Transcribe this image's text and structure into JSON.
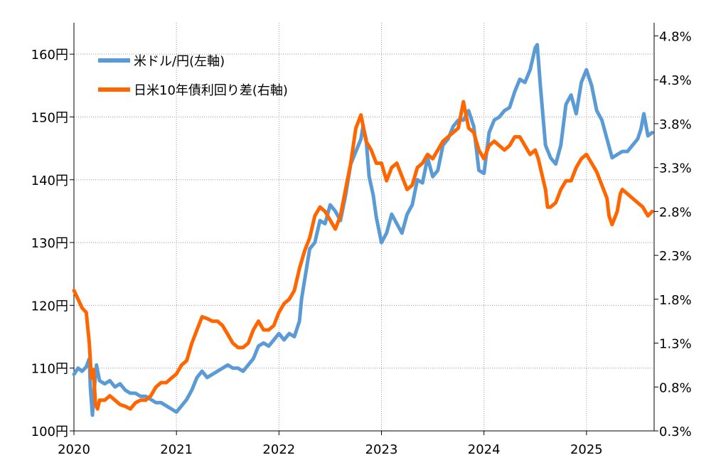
{
  "chart_data": {
    "type": "line",
    "x_ticks": [
      "2020",
      "2021",
      "2022",
      "2023",
      "2024",
      "2025"
    ],
    "x_range": [
      2020.0,
      2025.66
    ],
    "y_left": {
      "ticks": [
        "100円",
        "110円",
        "120円",
        "130円",
        "140円",
        "150円",
        "160円"
      ],
      "range": [
        100,
        165
      ]
    },
    "y_right": {
      "ticks": [
        "0.3%",
        "0.8%",
        "1.3%",
        "1.8%",
        "2.3%",
        "2.8%",
        "3.3%",
        "3.8%",
        "4.3%",
        "4.8%"
      ],
      "range": [
        0.3,
        4.95
      ]
    },
    "grid": "dotted",
    "legend_position": "top-left",
    "series": [
      {
        "name": "米ドル/円(左軸)",
        "axis": "left",
        "color": "#5b9bd5",
        "points": [
          [
            2020.0,
            109.0
          ],
          [
            2020.04,
            110.0
          ],
          [
            2020.08,
            109.5
          ],
          [
            2020.12,
            110.2
          ],
          [
            2020.15,
            111.5
          ],
          [
            2020.16,
            107.0
          ],
          [
            2020.18,
            102.5
          ],
          [
            2020.2,
            107.0
          ],
          [
            2020.22,
            110.5
          ],
          [
            2020.25,
            108.0
          ],
          [
            2020.3,
            107.5
          ],
          [
            2020.35,
            108.0
          ],
          [
            2020.4,
            107.0
          ],
          [
            2020.45,
            107.5
          ],
          [
            2020.5,
            106.5
          ],
          [
            2020.55,
            106.0
          ],
          [
            2020.6,
            106.0
          ],
          [
            2020.65,
            105.5
          ],
          [
            2020.7,
            105.5
          ],
          [
            2020.75,
            105.0
          ],
          [
            2020.8,
            104.5
          ],
          [
            2020.85,
            104.5
          ],
          [
            2020.9,
            104.0
          ],
          [
            2020.95,
            103.5
          ],
          [
            2021.0,
            103.0
          ],
          [
            2021.05,
            104.0
          ],
          [
            2021.1,
            105.0
          ],
          [
            2021.15,
            106.5
          ],
          [
            2021.2,
            108.5
          ],
          [
            2021.25,
            109.5
          ],
          [
            2021.3,
            108.5
          ],
          [
            2021.35,
            109.0
          ],
          [
            2021.4,
            109.5
          ],
          [
            2021.45,
            110.0
          ],
          [
            2021.5,
            110.5
          ],
          [
            2021.55,
            110.0
          ],
          [
            2021.6,
            110.0
          ],
          [
            2021.65,
            109.5
          ],
          [
            2021.7,
            110.5
          ],
          [
            2021.75,
            111.5
          ],
          [
            2021.8,
            113.5
          ],
          [
            2021.85,
            114.0
          ],
          [
            2021.9,
            113.5
          ],
          [
            2021.95,
            114.5
          ],
          [
            2022.0,
            115.5
          ],
          [
            2022.05,
            114.5
          ],
          [
            2022.1,
            115.5
          ],
          [
            2022.15,
            115.0
          ],
          [
            2022.2,
            117.5
          ],
          [
            2022.22,
            121.0
          ],
          [
            2022.25,
            124.0
          ],
          [
            2022.3,
            129.0
          ],
          [
            2022.35,
            130.0
          ],
          [
            2022.4,
            133.5
          ],
          [
            2022.45,
            133.0
          ],
          [
            2022.5,
            136.0
          ],
          [
            2022.55,
            135.0
          ],
          [
            2022.6,
            133.5
          ],
          [
            2022.65,
            137.5
          ],
          [
            2022.7,
            142.5
          ],
          [
            2022.75,
            144.5
          ],
          [
            2022.8,
            146.5
          ],
          [
            2022.82,
            148.5
          ],
          [
            2022.85,
            146.5
          ],
          [
            2022.88,
            140.5
          ],
          [
            2022.92,
            137.5
          ],
          [
            2022.95,
            134.0
          ],
          [
            2023.0,
            130.0
          ],
          [
            2023.05,
            131.5
          ],
          [
            2023.1,
            134.5
          ],
          [
            2023.15,
            133.0
          ],
          [
            2023.2,
            131.5
          ],
          [
            2023.25,
            134.5
          ],
          [
            2023.3,
            136.0
          ],
          [
            2023.35,
            140.0
          ],
          [
            2023.4,
            139.5
          ],
          [
            2023.45,
            143.5
          ],
          [
            2023.5,
            140.5
          ],
          [
            2023.55,
            141.5
          ],
          [
            2023.6,
            145.5
          ],
          [
            2023.65,
            146.5
          ],
          [
            2023.7,
            148.5
          ],
          [
            2023.75,
            149.5
          ],
          [
            2023.8,
            149.5
          ],
          [
            2023.85,
            151.0
          ],
          [
            2023.9,
            148.5
          ],
          [
            2023.95,
            141.5
          ],
          [
            2024.0,
            141.0
          ],
          [
            2024.05,
            147.5
          ],
          [
            2024.1,
            149.5
          ],
          [
            2024.15,
            150.0
          ],
          [
            2024.2,
            151.0
          ],
          [
            2024.25,
            151.5
          ],
          [
            2024.3,
            154.0
          ],
          [
            2024.35,
            156.0
          ],
          [
            2024.4,
            155.5
          ],
          [
            2024.45,
            157.5
          ],
          [
            2024.5,
            161.0
          ],
          [
            2024.52,
            161.5
          ],
          [
            2024.55,
            155.0
          ],
          [
            2024.6,
            145.5
          ],
          [
            2024.65,
            143.5
          ],
          [
            2024.7,
            142.5
          ],
          [
            2024.75,
            145.5
          ],
          [
            2024.8,
            152.0
          ],
          [
            2024.85,
            153.5
          ],
          [
            2024.9,
            150.5
          ],
          [
            2024.95,
            155.5
          ],
          [
            2025.0,
            157.5
          ],
          [
            2025.05,
            155.0
          ],
          [
            2025.1,
            151.0
          ],
          [
            2025.15,
            149.5
          ],
          [
            2025.2,
            146.5
          ],
          [
            2025.25,
            143.5
          ],
          [
            2025.3,
            144.0
          ],
          [
            2025.35,
            144.5
          ],
          [
            2025.4,
            144.5
          ],
          [
            2025.45,
            145.5
          ],
          [
            2025.5,
            146.5
          ],
          [
            2025.53,
            148.0
          ],
          [
            2025.56,
            150.5
          ],
          [
            2025.6,
            147.0
          ],
          [
            2025.64,
            147.5
          ]
        ]
      },
      {
        "name": "日米10年債利回り差(右軸)",
        "axis": "right",
        "color": "#ff6600",
        "points": [
          [
            2020.0,
            1.9
          ],
          [
            2020.04,
            1.8
          ],
          [
            2020.08,
            1.7
          ],
          [
            2020.12,
            1.65
          ],
          [
            2020.15,
            1.3
          ],
          [
            2020.17,
            0.9
          ],
          [
            2020.19,
            1.0
          ],
          [
            2020.21,
            0.6
          ],
          [
            2020.23,
            0.55
          ],
          [
            2020.25,
            0.65
          ],
          [
            2020.3,
            0.65
          ],
          [
            2020.35,
            0.7
          ],
          [
            2020.4,
            0.65
          ],
          [
            2020.45,
            0.6
          ],
          [
            2020.5,
            0.58
          ],
          [
            2020.55,
            0.55
          ],
          [
            2020.6,
            0.62
          ],
          [
            2020.65,
            0.65
          ],
          [
            2020.7,
            0.65
          ],
          [
            2020.75,
            0.7
          ],
          [
            2020.8,
            0.8
          ],
          [
            2020.85,
            0.85
          ],
          [
            2020.9,
            0.85
          ],
          [
            2020.95,
            0.9
          ],
          [
            2021.0,
            0.95
          ],
          [
            2021.05,
            1.05
          ],
          [
            2021.1,
            1.1
          ],
          [
            2021.15,
            1.3
          ],
          [
            2021.2,
            1.45
          ],
          [
            2021.25,
            1.6
          ],
          [
            2021.3,
            1.58
          ],
          [
            2021.35,
            1.55
          ],
          [
            2021.4,
            1.55
          ],
          [
            2021.45,
            1.5
          ],
          [
            2021.5,
            1.4
          ],
          [
            2021.55,
            1.3
          ],
          [
            2021.6,
            1.25
          ],
          [
            2021.65,
            1.25
          ],
          [
            2021.7,
            1.3
          ],
          [
            2021.75,
            1.45
          ],
          [
            2021.8,
            1.55
          ],
          [
            2021.85,
            1.45
          ],
          [
            2021.9,
            1.45
          ],
          [
            2021.95,
            1.5
          ],
          [
            2022.0,
            1.65
          ],
          [
            2022.05,
            1.75
          ],
          [
            2022.1,
            1.8
          ],
          [
            2022.15,
            1.9
          ],
          [
            2022.2,
            2.15
          ],
          [
            2022.25,
            2.35
          ],
          [
            2022.3,
            2.5
          ],
          [
            2022.35,
            2.75
          ],
          [
            2022.4,
            2.85
          ],
          [
            2022.45,
            2.8
          ],
          [
            2022.5,
            2.7
          ],
          [
            2022.55,
            2.6
          ],
          [
            2022.6,
            2.75
          ],
          [
            2022.65,
            3.05
          ],
          [
            2022.7,
            3.35
          ],
          [
            2022.75,
            3.75
          ],
          [
            2022.8,
            3.9
          ],
          [
            2022.85,
            3.6
          ],
          [
            2022.9,
            3.5
          ],
          [
            2022.95,
            3.35
          ],
          [
            2023.0,
            3.35
          ],
          [
            2023.05,
            3.15
          ],
          [
            2023.1,
            3.3
          ],
          [
            2023.15,
            3.35
          ],
          [
            2023.2,
            3.2
          ],
          [
            2023.25,
            3.05
          ],
          [
            2023.3,
            3.1
          ],
          [
            2023.35,
            3.3
          ],
          [
            2023.4,
            3.35
          ],
          [
            2023.45,
            3.45
          ],
          [
            2023.5,
            3.4
          ],
          [
            2023.55,
            3.5
          ],
          [
            2023.6,
            3.6
          ],
          [
            2023.65,
            3.65
          ],
          [
            2023.7,
            3.7
          ],
          [
            2023.75,
            3.75
          ],
          [
            2023.8,
            4.05
          ],
          [
            2023.85,
            3.75
          ],
          [
            2023.9,
            3.7
          ],
          [
            2023.95,
            3.5
          ],
          [
            2024.0,
            3.4
          ],
          [
            2024.05,
            3.55
          ],
          [
            2024.1,
            3.6
          ],
          [
            2024.15,
            3.55
          ],
          [
            2024.2,
            3.5
          ],
          [
            2024.25,
            3.55
          ],
          [
            2024.3,
            3.65
          ],
          [
            2024.35,
            3.65
          ],
          [
            2024.4,
            3.55
          ],
          [
            2024.45,
            3.45
          ],
          [
            2024.5,
            3.5
          ],
          [
            2024.53,
            3.4
          ],
          [
            2024.56,
            3.25
          ],
          [
            2024.58,
            3.15
          ],
          [
            2024.6,
            3.05
          ],
          [
            2024.62,
            2.85
          ],
          [
            2024.65,
            2.85
          ],
          [
            2024.7,
            2.9
          ],
          [
            2024.75,
            3.05
          ],
          [
            2024.8,
            3.15
          ],
          [
            2024.85,
            3.15
          ],
          [
            2024.9,
            3.3
          ],
          [
            2024.95,
            3.4
          ],
          [
            2025.0,
            3.45
          ],
          [
            2025.05,
            3.35
          ],
          [
            2025.1,
            3.25
          ],
          [
            2025.15,
            3.1
          ],
          [
            2025.2,
            2.95
          ],
          [
            2025.22,
            2.75
          ],
          [
            2025.25,
            2.65
          ],
          [
            2025.3,
            2.8
          ],
          [
            2025.33,
            3.0
          ],
          [
            2025.35,
            3.05
          ],
          [
            2025.4,
            3.0
          ],
          [
            2025.45,
            2.95
          ],
          [
            2025.5,
            2.9
          ],
          [
            2025.55,
            2.85
          ],
          [
            2025.6,
            2.75
          ],
          [
            2025.64,
            2.8
          ]
        ]
      }
    ]
  }
}
